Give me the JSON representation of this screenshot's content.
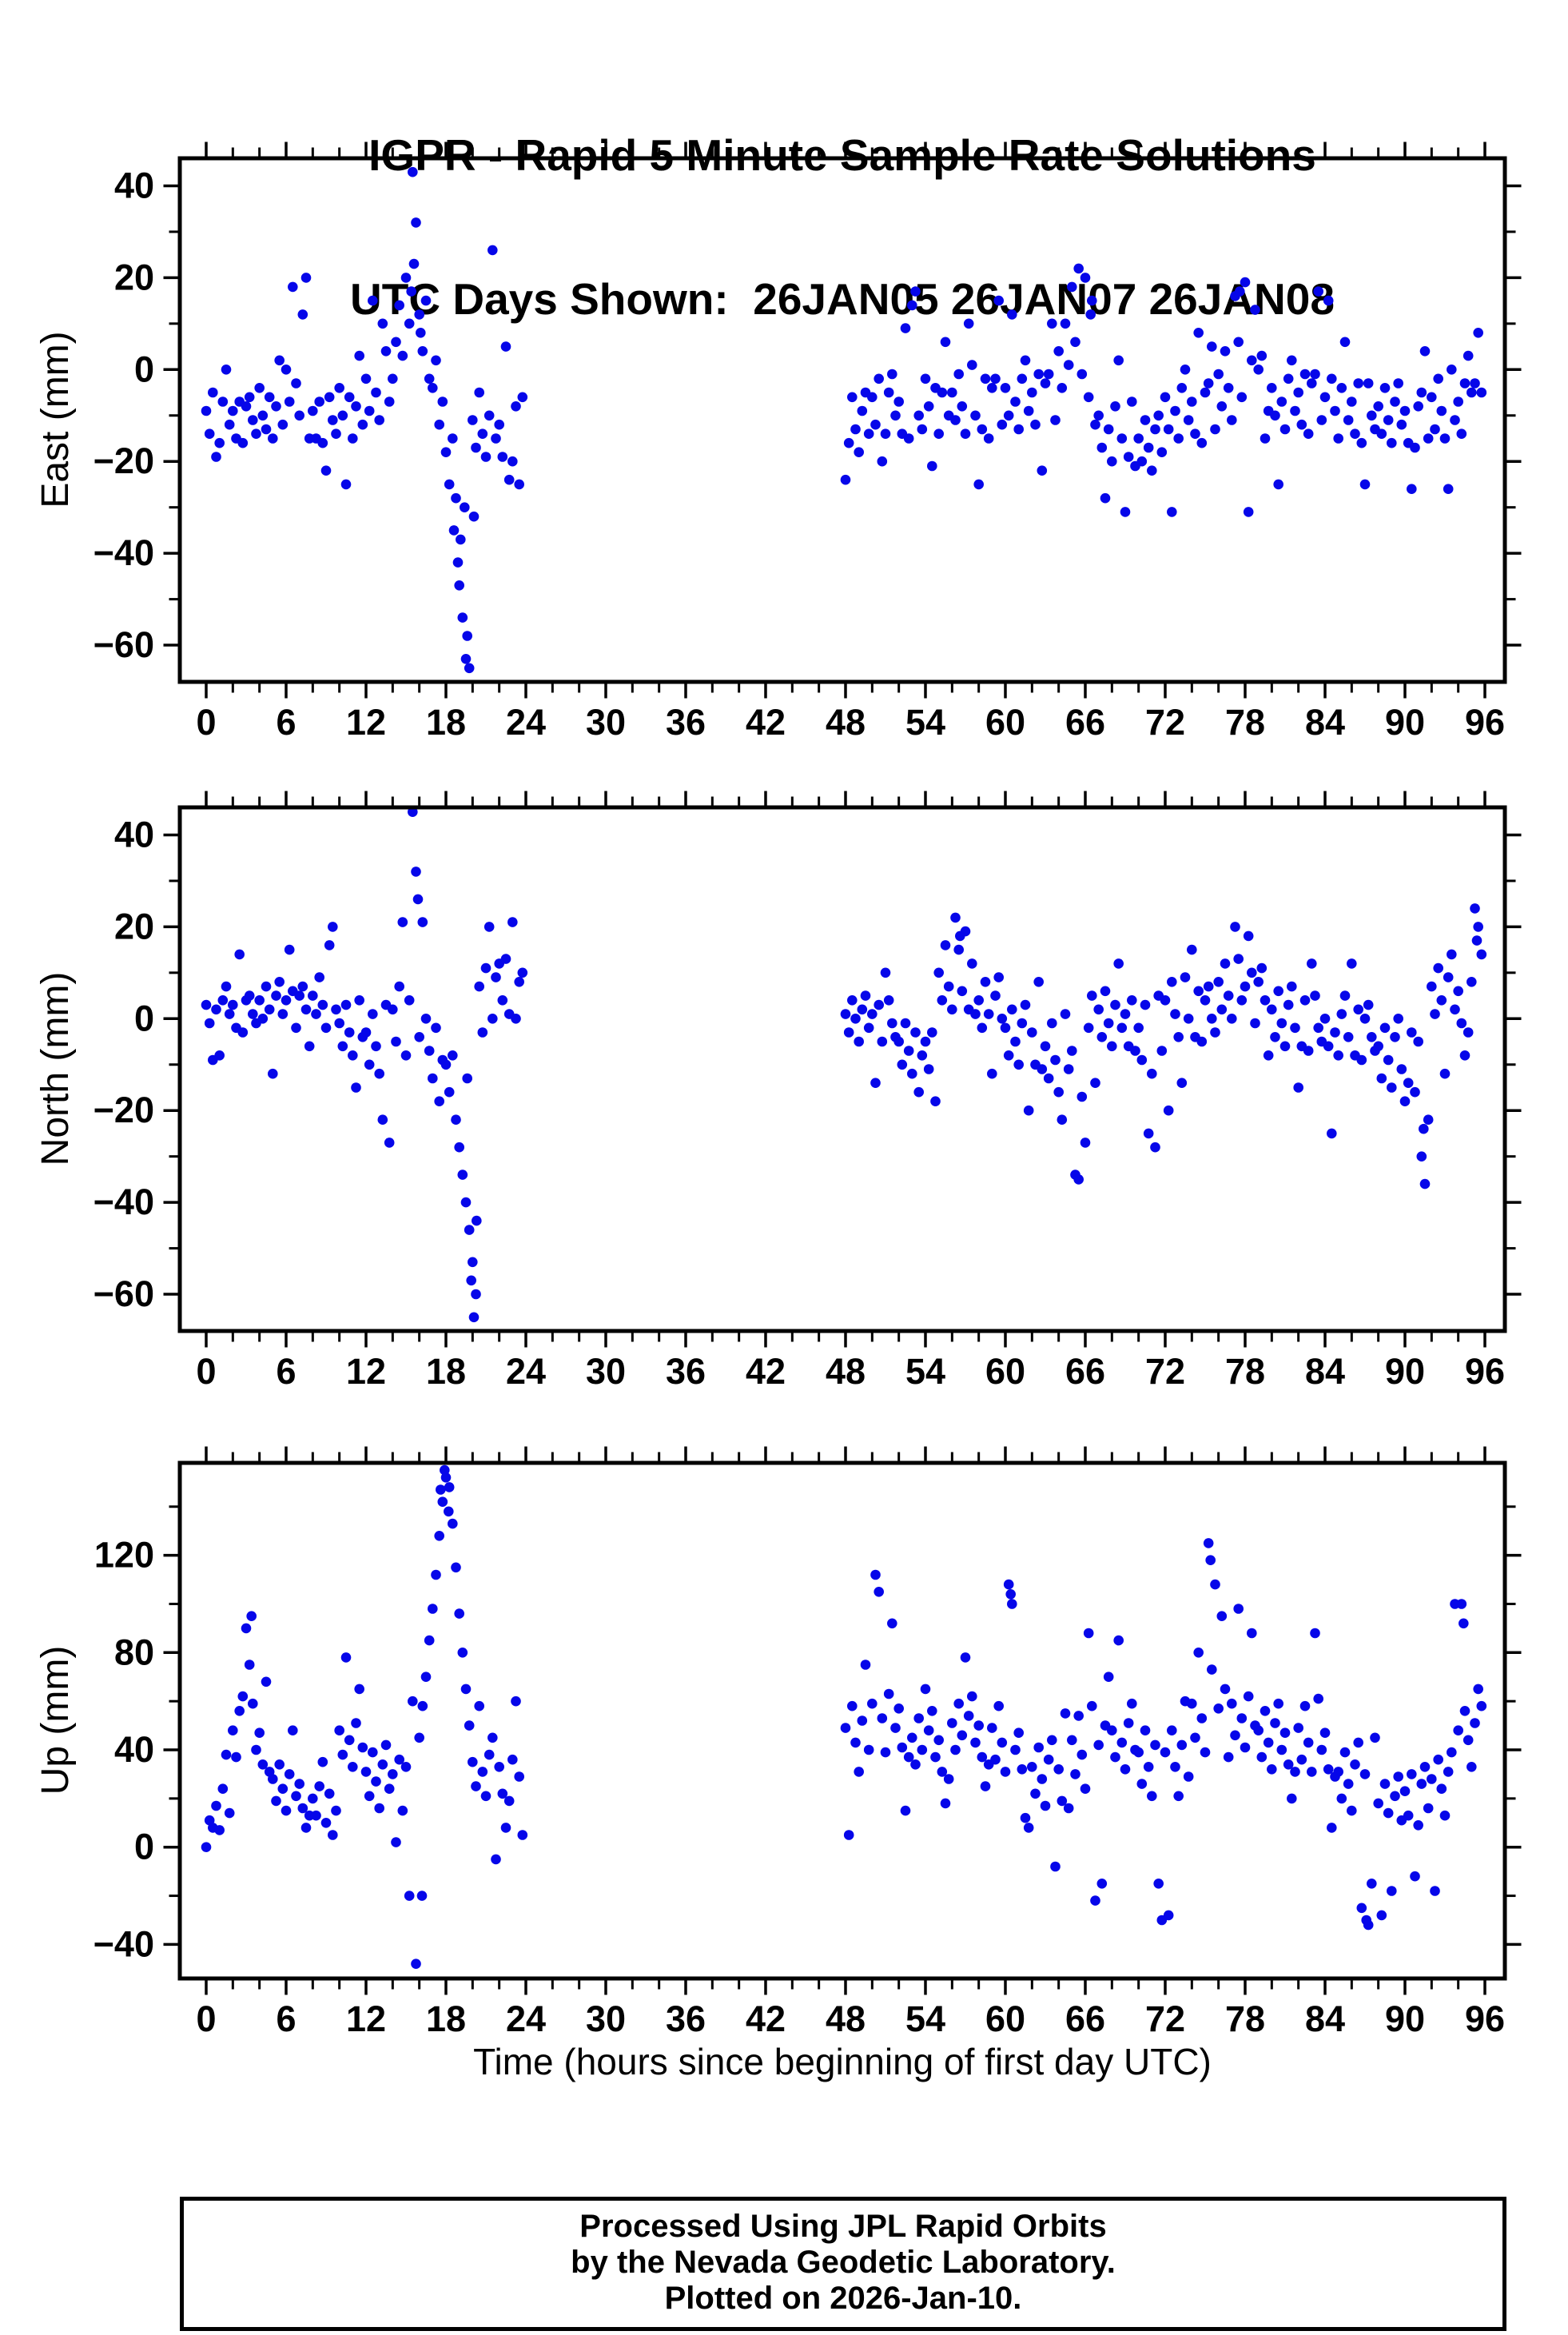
{
  "title": {
    "line1": "IGPR - Rapid 5 Minute Sample Rate Solutions",
    "line2": "UTC Days Shown:  26JAN05 26JAN07 26JAN08"
  },
  "xlabel": "Time (hours since beginning of first day UTC)",
  "footer": {
    "line1": "Processed Using JPL Rapid Orbits",
    "line2": "by the Nevada Geodetic Laboratory.",
    "line3": "Plotted on 2026-Jan-10."
  },
  "style": {
    "point_color": "#0606e9",
    "axis_color": "#000000",
    "point_radius": 6.3
  },
  "chart_data": [
    {
      "type": "scatter",
      "id": "east",
      "ylabel": "East (mm)",
      "xlim": [
        -1.98,
        97.5
      ],
      "ylim": [
        -68,
        46
      ],
      "xticks": {
        "min": 0,
        "max": 96,
        "major_step": 6,
        "minor_step": 2
      },
      "yticks_major": [
        40,
        20,
        0,
        -20,
        -40,
        -60
      ],
      "yticks_minor_step": 10,
      "series": [
        {
          "name": "day1_26JAN05",
          "t_start": 0,
          "t_step": 0.25,
          "y": [
            -9,
            -14,
            -5,
            -19,
            -16,
            -7,
            0,
            -12,
            -9,
            -15,
            -7,
            -16,
            -8,
            -6,
            -11,
            -14,
            -4,
            -10,
            -13,
            -6,
            -15,
            -8,
            2,
            -12,
            0,
            -7,
            18,
            -3,
            -10,
            12,
            20,
            -15,
            -9,
            -15,
            -7,
            -16,
            -22,
            -6,
            -11,
            -14,
            -4,
            -10,
            -25,
            -6,
            -15,
            -8,
            3,
            -12,
            -2,
            -9,
            15,
            -5,
            -11,
            10,
            4,
            -7,
            -2,
            6,
            14,
            3,
            20,
            10,
            43,
            32,
            12,
            4,
            15,
            -2,
            -4,
            2,
            -12,
            -7,
            -18,
            -25,
            -15,
            -28,
            -47,
            -54,
            -63,
            -65,
            -11,
            -17,
            -5,
            -14,
            -19,
            -10,
            26,
            -15,
            -12,
            -19,
            5,
            -24,
            -20,
            -8,
            -25,
            -6
          ]
        },
        {
          "name": "days2_3_26JAN07_26JAN08",
          "t_start": 48,
          "t_step": 0.25,
          "y": [
            -24,
            -16,
            -6,
            -13,
            -18,
            -9,
            -5,
            -14,
            -6,
            -12,
            -2,
            -20,
            -14,
            -5,
            -1,
            -10,
            -7,
            -14,
            9,
            -15,
            14,
            17,
            -10,
            -13,
            -2,
            -8,
            -21,
            -4,
            -14,
            -5,
            6,
            -10,
            -5,
            -11,
            -1,
            -8,
            -14,
            10,
            1,
            -10,
            -25,
            -13,
            -2,
            -15,
            -4,
            -2,
            15,
            -12,
            -4,
            -10,
            12,
            -7,
            -13,
            -2,
            2,
            -9,
            -5,
            -12,
            -1,
            -22,
            -3,
            -1,
            10,
            -11,
            4,
            -4,
            10,
            1,
            18,
            6,
            22,
            -1,
            20,
            -6,
            15,
            -12,
            -10,
            -17,
            -28,
            -13,
            -20,
            -8,
            2,
            -15,
            -31,
            -19,
            -7,
            -21,
            -15,
            -20,
            -11,
            -17,
            -22,
            -13,
            -10,
            -18,
            -6,
            -13,
            -31,
            -9,
            -15,
            -4,
            0,
            -11,
            -7,
            -14,
            8,
            -16,
            -5,
            -3,
            5,
            -13,
            -1,
            -8,
            4,
            -4,
            -11,
            16,
            6,
            -6,
            19,
            -31,
            2,
            13,
            0,
            3,
            -15,
            -9,
            -4,
            -10,
            -25,
            -7,
            -13,
            -2,
            2,
            -9,
            -5,
            -12,
            -1,
            -14,
            -3,
            -1,
            17,
            -11,
            -6,
            15,
            -2,
            -9,
            -15,
            -4,
            6,
            -11,
            -7,
            -14,
            -3,
            -16,
            -25,
            -3,
            -10,
            -13,
            -8,
            -14,
            -4,
            -11,
            -16,
            -7,
            -3,
            -12,
            -9,
            -16,
            -26,
            -17,
            -8,
            -5,
            4,
            -15,
            -6,
            -13,
            -2,
            -9,
            -15,
            -26,
            0,
            -11,
            -7,
            -14,
            -3,
            3,
            -5,
            -3,
            8,
            -5
          ]
        }
      ],
      "extra_points": [
        [
          15.4,
          17
        ],
        [
          15.6,
          23
        ],
        [
          16.1,
          8
        ],
        [
          18.6,
          -35
        ],
        [
          18.9,
          -42
        ],
        [
          19.1,
          -37
        ],
        [
          19.4,
          -30
        ],
        [
          19.6,
          -58
        ],
        [
          20.1,
          -32
        ],
        [
          66.4,
          12
        ],
        [
          77.6,
          17
        ]
      ]
    },
    {
      "type": "scatter",
      "id": "north",
      "ylabel": "North (mm)",
      "xlim": [
        -1.98,
        97.5
      ],
      "ylim": [
        -68,
        46
      ],
      "xticks": {
        "min": 0,
        "max": 96,
        "major_step": 6,
        "minor_step": 2
      },
      "yticks_major": [
        40,
        20,
        0,
        -20,
        -40,
        -60
      ],
      "yticks_minor_step": 10,
      "series": [
        {
          "name": "day1_26JAN05",
          "t_start": 0,
          "t_step": 0.25,
          "y": [
            3,
            -1,
            -9,
            2,
            -8,
            4,
            7,
            1,
            3,
            -2,
            14,
            -3,
            4,
            5,
            1,
            -1,
            4,
            0,
            7,
            2,
            -12,
            5,
            8,
            1,
            4,
            15,
            6,
            -2,
            5,
            7,
            2,
            -6,
            5,
            1,
            9,
            3,
            -2,
            16,
            20,
            2,
            -1,
            -6,
            3,
            -3,
            -8,
            -15,
            4,
            -4,
            -3,
            -10,
            1,
            -6,
            -12,
            -22,
            3,
            -27,
            2,
            -5,
            7,
            21,
            -8,
            4,
            45,
            32,
            -4,
            21,
            0,
            -7,
            -13,
            -2,
            -18,
            -9,
            -10,
            -16,
            -8,
            -22,
            -28,
            -34,
            -40,
            -46,
            -53,
            -60,
            7,
            -3,
            11,
            20,
            0,
            9,
            12,
            4,
            13,
            1,
            21,
            0,
            8,
            10
          ]
        },
        {
          "name": "days2_3_26JAN07_26JAN08",
          "t_start": 48,
          "t_step": 0.25,
          "y": [
            1,
            -3,
            4,
            0,
            -5,
            2,
            5,
            -2,
            1,
            -14,
            3,
            -5,
            10,
            4,
            -1,
            -4,
            -5,
            -10,
            -1,
            -7,
            -12,
            -3,
            -16,
            -8,
            -5,
            -11,
            -3,
            -18,
            10,
            4,
            16,
            7,
            2,
            22,
            15,
            6,
            19,
            2,
            12,
            1,
            4,
            -2,
            8,
            1,
            -12,
            5,
            9,
            0,
            -2,
            -8,
            2,
            -5,
            -10,
            -1,
            3,
            -20,
            -3,
            -10,
            8,
            -11,
            -6,
            -13,
            -1,
            -9,
            -16,
            -22,
            1,
            -11,
            -7,
            -34,
            -35,
            -17,
            -27,
            -2,
            5,
            -14,
            2,
            -4,
            6,
            -1,
            -6,
            3,
            12,
            -2,
            1,
            -6,
            4,
            -7,
            -2,
            -9,
            3,
            -25,
            -12,
            -28,
            5,
            -7,
            4,
            -20,
            8,
            1,
            -4,
            -14,
            9,
            0,
            15,
            -4,
            6,
            -5,
            4,
            7,
            0,
            -3,
            8,
            2,
            12,
            5,
            0,
            20,
            13,
            4,
            7,
            18,
            10,
            -1,
            8,
            11,
            4,
            -8,
            2,
            -4,
            6,
            -1,
            -6,
            3,
            7,
            -2,
            -15,
            -6,
            4,
            -7,
            12,
            5,
            -2,
            -5,
            0,
            -6,
            -25,
            -3,
            -8,
            1,
            5,
            -4,
            12,
            -8,
            2,
            -9,
            0,
            3,
            -4,
            -7,
            -6,
            -13,
            -2,
            -9,
            -15,
            -4,
            0,
            -11,
            -18,
            -14,
            -3,
            -16,
            -5,
            -30,
            -36,
            -22,
            7,
            1,
            11,
            4,
            -12,
            9,
            14,
            2,
            6,
            -1,
            -8,
            -3,
            8,
            24,
            20,
            14
          ]
        }
      ],
      "extra_points": [
        [
          15.9,
          26
        ],
        [
          19.6,
          -13
        ],
        [
          19.9,
          -57
        ],
        [
          20.1,
          -65
        ],
        [
          20.3,
          -44
        ],
        [
          56.6,
          18
        ],
        [
          91.4,
          -24
        ],
        [
          95.4,
          17
        ]
      ]
    },
    {
      "type": "scatter",
      "id": "up",
      "ylabel": "Up (mm)",
      "xlim": [
        -1.98,
        97.5
      ],
      "ylim": [
        -54,
        158
      ],
      "xticks": {
        "min": 0,
        "max": 96,
        "major_step": 6,
        "minor_step": 2
      },
      "yticks_major": [
        120,
        80,
        40,
        0,
        -40
      ],
      "yticks_minor_step": 20,
      "series": [
        {
          "name": "day1_26JAN05",
          "t_start": 0,
          "t_step": 0.25,
          "y": [
            0,
            11,
            8,
            17,
            7,
            24,
            38,
            14,
            48,
            37,
            56,
            62,
            90,
            75,
            59,
            40,
            47,
            34,
            68,
            31,
            28,
            19,
            34,
            24,
            15,
            30,
            48,
            21,
            26,
            16,
            8,
            13,
            20,
            13,
            25,
            35,
            10,
            22,
            5,
            15,
            48,
            38,
            78,
            44,
            33,
            51,
            65,
            41,
            31,
            21,
            39,
            27,
            16,
            34,
            42,
            24,
            30,
            2,
            36,
            15,
            33,
            -20,
            60,
            -48,
            45,
            58,
            70,
            85,
            98,
            112,
            128,
            142,
            152,
            148,
            133,
            115,
            96,
            80,
            65,
            50,
            35,
            25,
            58,
            31,
            21,
            38,
            45,
            -5,
            33,
            22,
            8,
            19,
            36,
            60,
            29,
            5
          ]
        },
        {
          "name": "days2_3_26JAN07_26JAN08",
          "t_start": 48,
          "t_step": 0.25,
          "y": [
            49,
            5,
            58,
            43,
            31,
            52,
            75,
            40,
            59,
            112,
            105,
            53,
            39,
            63,
            92,
            49,
            57,
            41,
            15,
            37,
            45,
            34,
            53,
            40,
            65,
            48,
            56,
            37,
            44,
            31,
            18,
            28,
            51,
            40,
            59,
            46,
            78,
            54,
            62,
            43,
            50,
            37,
            25,
            34,
            49,
            36,
            58,
            43,
            31,
            108,
            100,
            40,
            47,
            32,
            12,
            8,
            33,
            22,
            41,
            28,
            17,
            36,
            44,
            -8,
            32,
            19,
            55,
            16,
            44,
            30,
            54,
            38,
            24,
            88,
            58,
            -22,
            42,
            -15,
            50,
            70,
            48,
            37,
            85,
            43,
            32,
            51,
            59,
            40,
            39,
            26,
            48,
            33,
            21,
            42,
            -15,
            -30,
            39,
            -28,
            48,
            33,
            21,
            42,
            60,
            29,
            59,
            45,
            80,
            53,
            39,
            125,
            73,
            108,
            57,
            95,
            65,
            37,
            59,
            46,
            98,
            53,
            41,
            62,
            88,
            50,
            48,
            37,
            56,
            43,
            32,
            51,
            59,
            40,
            47,
            34,
            20,
            31,
            49,
            36,
            58,
            43,
            31,
            88,
            61,
            40,
            47,
            32,
            8,
            29,
            31,
            20,
            39,
            26,
            15,
            34,
            43,
            -25,
            30,
            -32,
            -15,
            45,
            18,
            -28,
            26,
            14,
            -18,
            21,
            29,
            11,
            23,
            13,
            30,
            -12,
            9,
            26,
            33,
            16,
            28,
            -18,
            36,
            24,
            13,
            31,
            39,
            100,
            48,
            100,
            56,
            44,
            33,
            51,
            65,
            58
          ]
        }
      ],
      "extra_points": [
        [
          3.4,
          95
        ],
        [
          16.2,
          -20
        ],
        [
          17.6,
          147
        ],
        [
          17.9,
          155
        ],
        [
          18.2,
          138
        ],
        [
          60.4,
          104
        ],
        [
          75.4,
          118
        ],
        [
          87.1,
          -30
        ],
        [
          94.4,
          92
        ]
      ]
    }
  ]
}
